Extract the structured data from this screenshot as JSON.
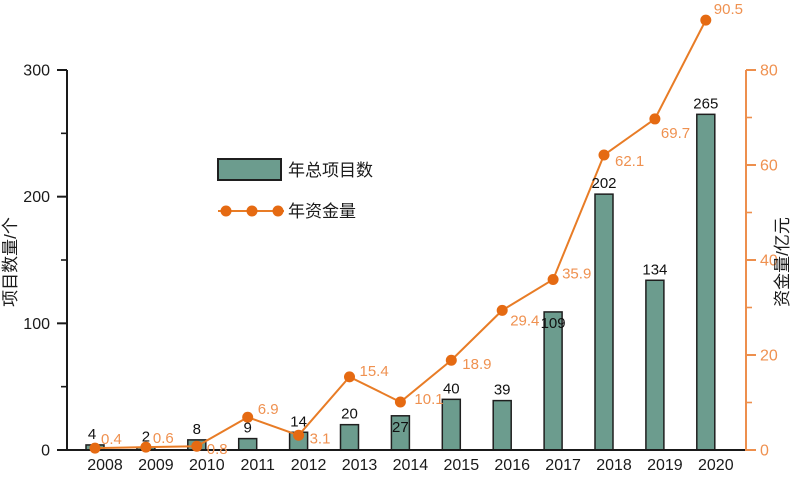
{
  "chart_data": {
    "type": "combo-bar-line",
    "title": "",
    "categories": [
      "2008",
      "2009",
      "2010",
      "2011",
      "2012",
      "2013",
      "2014",
      "2015",
      "2016",
      "2017",
      "2018",
      "2019",
      "2020"
    ],
    "series": [
      {
        "name": "年总项目数",
        "type": "bar",
        "axis": "left",
        "values": [
          4,
          2,
          8,
          9,
          14,
          20,
          27,
          40,
          39,
          109,
          202,
          134,
          265
        ]
      },
      {
        "name": "年资金量",
        "type": "line",
        "axis": "right",
        "values": [
          0.4,
          0.6,
          0.8,
          6.9,
          3.1,
          15.4,
          10.1,
          18.9,
          29.4,
          35.9,
          62.1,
          69.7,
          90.5
        ]
      }
    ],
    "left_axis": {
      "label": "项目数量/个",
      "min": 0,
      "max": 300,
      "major_ticks": [
        0,
        100,
        200,
        300
      ],
      "minor_ticks": [
        50,
        150,
        250
      ]
    },
    "right_axis": {
      "label": "资金量/亿元",
      "min": 0,
      "max": 80,
      "major_ticks": [
        0,
        20,
        40,
        60,
        80
      ],
      "minor_ticks": [
        10,
        30,
        50,
        70
      ]
    },
    "legend": {
      "position": "center-left",
      "items": [
        "年总项目数",
        "年资金量"
      ]
    },
    "grid": false,
    "colors": {
      "background": "#ffffff",
      "bar_fill": "#6c9c8e",
      "bar_border": "#1f1f1f",
      "line": "#e87c26",
      "marker": "#e56a12",
      "point_label": "#ef9150",
      "right_axis": "#ed8f4d",
      "axis": "#1a1a1a",
      "value_label": "#111111"
    }
  }
}
